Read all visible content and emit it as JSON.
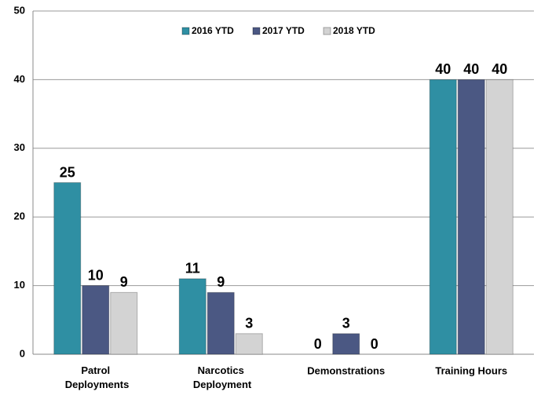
{
  "chart_data": {
    "type": "bar",
    "categories": [
      "Patrol Deployments",
      "Narcotics Deployment",
      "Demonstrations",
      "Training Hours"
    ],
    "series": [
      {
        "name": "2016 YTD",
        "color": "#2f8fa3",
        "values": [
          25,
          11,
          0,
          40
        ]
      },
      {
        "name": "2017 YTD",
        "color": "#4b5883",
        "values": [
          10,
          9,
          3,
          40
        ]
      },
      {
        "name": "2018 YTD",
        "color": "#d3d3d3",
        "values": [
          9,
          3,
          0,
          40
        ]
      }
    ],
    "ylim": [
      0,
      50
    ],
    "yticks": [
      0,
      10,
      20,
      30,
      40,
      50
    ],
    "grid": true,
    "legend": "top"
  }
}
